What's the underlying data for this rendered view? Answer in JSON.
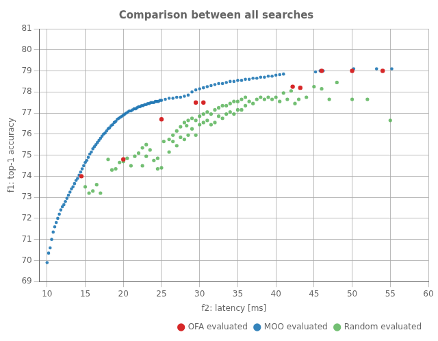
{
  "chart_data": {
    "type": "scatter",
    "title": "Comparison between all searches",
    "x_label": "f2: latency [ms]",
    "y_label": "f1: top-1 accuracy",
    "xlim": [
      9,
      60
    ],
    "ylim": [
      69,
      81
    ],
    "xticks": [
      10,
      15,
      20,
      25,
      30,
      35,
      40,
      45,
      50,
      55,
      60
    ],
    "yticks": [
      69,
      70,
      71,
      72,
      73,
      74,
      75,
      76,
      77,
      78,
      79,
      80,
      81
    ],
    "grid": true,
    "legend": "lower right",
    "series": [
      {
        "name": "Random evaluated",
        "color": "#5ab45a",
        "marker": "circle",
        "values": [
          [
            15.0,
            73.5
          ],
          [
            15.5,
            73.2
          ],
          [
            16.0,
            73.3
          ],
          [
            16.5,
            73.6
          ],
          [
            17.0,
            73.2
          ],
          [
            18.0,
            74.8
          ],
          [
            18.5,
            74.3
          ],
          [
            19.0,
            74.35
          ],
          [
            19.5,
            74.65
          ],
          [
            20.0,
            74.7
          ],
          [
            20.5,
            74.85
          ],
          [
            21.0,
            74.5
          ],
          [
            21.5,
            74.95
          ],
          [
            22.0,
            75.1
          ],
          [
            22.5,
            75.35
          ],
          [
            22.5,
            74.5
          ],
          [
            23.0,
            75.5
          ],
          [
            23.0,
            74.95
          ],
          [
            23.5,
            75.25
          ],
          [
            24.0,
            74.75
          ],
          [
            24.5,
            74.85
          ],
          [
            24.5,
            74.35
          ],
          [
            25.0,
            74.4
          ],
          [
            25.3,
            75.65
          ],
          [
            26.0,
            75.75
          ],
          [
            26.0,
            75.15
          ],
          [
            26.5,
            75.65
          ],
          [
            26.5,
            75.95
          ],
          [
            27.0,
            76.15
          ],
          [
            27.0,
            75.45
          ],
          [
            27.5,
            76.35
          ],
          [
            27.5,
            75.85
          ],
          [
            28.0,
            76.55
          ],
          [
            28.0,
            75.75
          ],
          [
            28.3,
            76.4
          ],
          [
            28.5,
            76.65
          ],
          [
            28.5,
            75.95
          ],
          [
            29.0,
            76.75
          ],
          [
            29.0,
            76.25
          ],
          [
            29.5,
            76.65
          ],
          [
            29.5,
            75.95
          ],
          [
            30.0,
            76.85
          ],
          [
            30.0,
            76.45
          ],
          [
            30.5,
            76.95
          ],
          [
            30.5,
            76.55
          ],
          [
            31.0,
            77.05
          ],
          [
            31.0,
            76.65
          ],
          [
            31.5,
            76.95
          ],
          [
            31.5,
            76.45
          ],
          [
            32.0,
            77.15
          ],
          [
            32.0,
            76.55
          ],
          [
            32.5,
            77.25
          ],
          [
            32.5,
            76.85
          ],
          [
            33.0,
            77.35
          ],
          [
            33.0,
            76.75
          ],
          [
            33.5,
            77.35
          ],
          [
            33.5,
            76.95
          ],
          [
            34.0,
            77.45
          ],
          [
            34.0,
            77.05
          ],
          [
            34.5,
            77.55
          ],
          [
            34.5,
            76.95
          ],
          [
            35.0,
            77.55
          ],
          [
            35.0,
            77.15
          ],
          [
            35.5,
            77.65
          ],
          [
            35.5,
            77.15
          ],
          [
            36.0,
            77.75
          ],
          [
            36.0,
            77.35
          ],
          [
            36.5,
            77.55
          ],
          [
            37.0,
            77.45
          ],
          [
            37.5,
            77.65
          ],
          [
            38.0,
            77.75
          ],
          [
            38.5,
            77.65
          ],
          [
            39.0,
            77.75
          ],
          [
            39.5,
            77.65
          ],
          [
            40.0,
            77.75
          ],
          [
            40.5,
            77.55
          ],
          [
            41.0,
            77.95
          ],
          [
            41.5,
            77.65
          ],
          [
            42.0,
            78.05
          ],
          [
            42.5,
            77.45
          ],
          [
            43.0,
            77.65
          ],
          [
            44.0,
            77.75
          ],
          [
            45.0,
            78.25
          ],
          [
            46.0,
            78.15
          ],
          [
            47.0,
            77.65
          ],
          [
            48.0,
            78.45
          ],
          [
            50.0,
            77.65
          ],
          [
            52.0,
            77.65
          ],
          [
            55.0,
            76.65
          ]
        ]
      },
      {
        "name": "MOO evaluated",
        "color": "#1f77b4",
        "marker": "circle",
        "values": [
          [
            10.0,
            69.9
          ],
          [
            10.2,
            70.35
          ],
          [
            10.4,
            70.6
          ],
          [
            10.6,
            71.0
          ],
          [
            10.8,
            71.35
          ],
          [
            11.0,
            71.6
          ],
          [
            11.2,
            71.8
          ],
          [
            11.4,
            72.0
          ],
          [
            11.6,
            72.2
          ],
          [
            11.8,
            72.4
          ],
          [
            12.0,
            72.55
          ],
          [
            12.2,
            72.65
          ],
          [
            12.4,
            72.8
          ],
          [
            12.6,
            72.95
          ],
          [
            12.8,
            73.1
          ],
          [
            13.0,
            73.25
          ],
          [
            13.2,
            73.4
          ],
          [
            13.4,
            73.5
          ],
          [
            13.6,
            73.65
          ],
          [
            13.8,
            73.8
          ],
          [
            14.0,
            73.9
          ],
          [
            14.2,
            74.05
          ],
          [
            14.4,
            74.2
          ],
          [
            14.6,
            74.35
          ],
          [
            14.8,
            74.5
          ],
          [
            15.0,
            74.65
          ],
          [
            15.2,
            74.75
          ],
          [
            15.4,
            74.9
          ],
          [
            15.6,
            75.05
          ],
          [
            15.8,
            75.15
          ],
          [
            16.0,
            75.3
          ],
          [
            16.2,
            75.4
          ],
          [
            16.4,
            75.5
          ],
          [
            16.6,
            75.6
          ],
          [
            16.8,
            75.7
          ],
          [
            17.0,
            75.8
          ],
          [
            17.2,
            75.9
          ],
          [
            17.4,
            76.0
          ],
          [
            17.6,
            76.05
          ],
          [
            17.8,
            76.15
          ],
          [
            18.0,
            76.25
          ],
          [
            18.2,
            76.3
          ],
          [
            18.4,
            76.4
          ],
          [
            18.6,
            76.45
          ],
          [
            18.8,
            76.55
          ],
          [
            19.0,
            76.6
          ],
          [
            19.2,
            76.7
          ],
          [
            19.4,
            76.75
          ],
          [
            19.6,
            76.8
          ],
          [
            19.8,
            76.85
          ],
          [
            20.0,
            76.9
          ],
          [
            20.2,
            76.95
          ],
          [
            20.4,
            77.0
          ],
          [
            20.6,
            77.05
          ],
          [
            20.8,
            77.1
          ],
          [
            21.0,
            77.1
          ],
          [
            21.2,
            77.15
          ],
          [
            21.4,
            77.2
          ],
          [
            21.6,
            77.2
          ],
          [
            21.8,
            77.25
          ],
          [
            22.0,
            77.3
          ],
          [
            22.2,
            77.3
          ],
          [
            22.4,
            77.35
          ],
          [
            22.6,
            77.35
          ],
          [
            22.8,
            77.4
          ],
          [
            23.0,
            77.4
          ],
          [
            23.2,
            77.45
          ],
          [
            23.4,
            77.45
          ],
          [
            23.6,
            77.5
          ],
          [
            23.8,
            77.5
          ],
          [
            24.0,
            77.5
          ],
          [
            24.2,
            77.55
          ],
          [
            24.4,
            77.55
          ],
          [
            24.6,
            77.55
          ],
          [
            24.8,
            77.6
          ],
          [
            25.0,
            77.6
          ],
          [
            25.5,
            77.65
          ],
          [
            26.0,
            77.7
          ],
          [
            26.5,
            77.7
          ],
          [
            27.0,
            77.75
          ],
          [
            27.5,
            77.75
          ],
          [
            28.0,
            77.8
          ],
          [
            28.5,
            77.85
          ],
          [
            29.0,
            78.0
          ],
          [
            29.5,
            78.1
          ],
          [
            30.0,
            78.15
          ],
          [
            30.5,
            78.2
          ],
          [
            31.0,
            78.25
          ],
          [
            31.5,
            78.3
          ],
          [
            32.0,
            78.35
          ],
          [
            32.5,
            78.4
          ],
          [
            33.0,
            78.4
          ],
          [
            33.5,
            78.45
          ],
          [
            34.0,
            78.5
          ],
          [
            34.5,
            78.5
          ],
          [
            35.0,
            78.55
          ],
          [
            35.5,
            78.55
          ],
          [
            36.0,
            78.6
          ],
          [
            36.5,
            78.6
          ],
          [
            37.0,
            78.65
          ],
          [
            37.5,
            78.65
          ],
          [
            38.0,
            78.7
          ],
          [
            38.5,
            78.7
          ],
          [
            39.0,
            78.75
          ],
          [
            39.5,
            78.75
          ],
          [
            40.0,
            78.8
          ],
          [
            40.5,
            78.82
          ],
          [
            41.0,
            78.85
          ],
          [
            45.2,
            78.95
          ],
          [
            45.8,
            79.0
          ],
          [
            46.2,
            79.0
          ],
          [
            50.2,
            79.1
          ],
          [
            53.2,
            79.1
          ],
          [
            55.2,
            79.1
          ]
        ]
      },
      {
        "name": "OFA evaluated",
        "color": "#d62728",
        "marker": "circle",
        "values": [
          [
            14.5,
            74.0
          ],
          [
            20.0,
            74.8
          ],
          [
            25.0,
            76.7
          ],
          [
            29.5,
            77.5
          ],
          [
            30.5,
            77.5
          ],
          [
            42.2,
            78.25
          ],
          [
            43.2,
            78.2
          ],
          [
            46.0,
            79.0
          ],
          [
            50.0,
            79.0
          ],
          [
            54.0,
            79.0
          ]
        ]
      }
    ]
  }
}
